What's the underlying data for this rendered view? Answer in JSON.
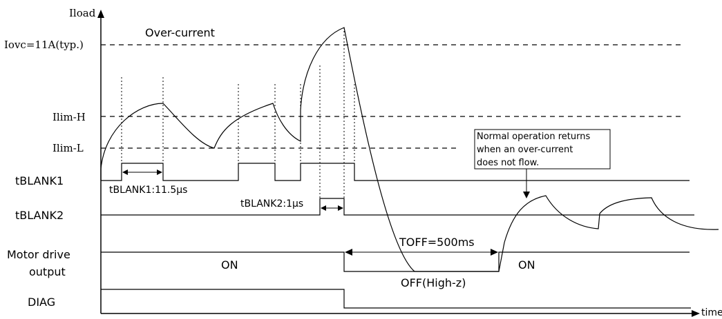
{
  "axes": {
    "y_label": "Iload",
    "x_label": "time"
  },
  "levels": {
    "iovc": "Iovc=11A(typ.)",
    "over_current": "Over-current",
    "ilim_h": "Ilim-H",
    "ilim_l": "Ilim-L"
  },
  "signals": {
    "tblank1": "tBLANK1",
    "tblank2": "tBLANK2",
    "motor_line1": "Motor drive",
    "motor_line2": "output",
    "diag": "DIAG"
  },
  "annotations": {
    "tblank1_duration": "tBLANK1:11.5μs",
    "tblank2_duration": "tBLANK2:1μs",
    "toff": "TOFF=500ms",
    "on_left": "ON",
    "on_right": "ON",
    "off": "OFF(High-z)"
  },
  "note": {
    "line1": "Normal operation returns",
    "line2": "when an over-current",
    "line3": "does not flow."
  }
}
